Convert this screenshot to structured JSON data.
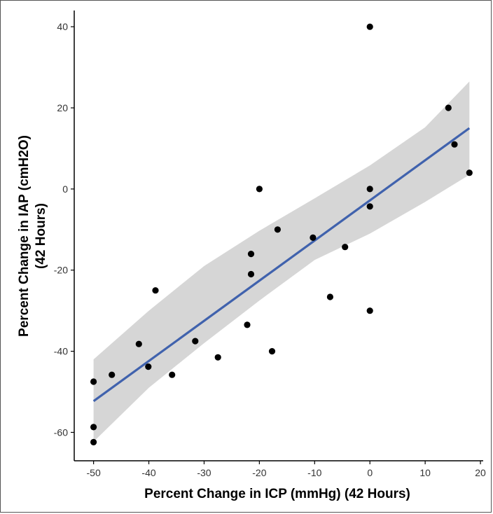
{
  "chart_data": {
    "type": "scatter",
    "title": "",
    "xlabel": "Percent Change in ICP (mmHg) (42 Hours)",
    "ylabel_lines": [
      "Percent Change in IAP (cmH2O)",
      "(42 Hours)"
    ],
    "xlim": [
      -53.5,
      20.5
    ],
    "ylim": [
      -67,
      44
    ],
    "xticks": [
      -50,
      -40,
      -30,
      -20,
      -10,
      0,
      10,
      20
    ],
    "yticks": [
      -60,
      -40,
      -20,
      0,
      20,
      40
    ],
    "xtick_labels": [
      "-50",
      "-40",
      "-30",
      "-20",
      "-10",
      "0",
      "10",
      "20"
    ],
    "ytick_labels": [
      "-60",
      "-40",
      "-20",
      "0",
      "20",
      "40"
    ],
    "grid": false,
    "points": [
      {
        "x": 0,
        "y": 40
      },
      {
        "x": 14.2,
        "y": 20
      },
      {
        "x": 15.3,
        "y": 11
      },
      {
        "x": 18,
        "y": 4
      },
      {
        "x": 0,
        "y": 0
      },
      {
        "x": -20,
        "y": 0
      },
      {
        "x": 0,
        "y": -4.3
      },
      {
        "x": -16.7,
        "y": -10
      },
      {
        "x": -10.3,
        "y": -12
      },
      {
        "x": -4.5,
        "y": -14.3
      },
      {
        "x": -21.5,
        "y": -16
      },
      {
        "x": -21.5,
        "y": -21
      },
      {
        "x": -38.8,
        "y": -25
      },
      {
        "x": -7.2,
        "y": -26.6
      },
      {
        "x": 0,
        "y": -30
      },
      {
        "x": -22.2,
        "y": -33.5
      },
      {
        "x": -31.6,
        "y": -37.5
      },
      {
        "x": -41.8,
        "y": -38.2
      },
      {
        "x": -17.7,
        "y": -40
      },
      {
        "x": -27.5,
        "y": -41.5
      },
      {
        "x": -40.1,
        "y": -43.8
      },
      {
        "x": -35.8,
        "y": -45.8
      },
      {
        "x": -46.7,
        "y": -45.8
      },
      {
        "x": -50,
        "y": -47.5
      },
      {
        "x": -50,
        "y": -58.7
      },
      {
        "x": -50,
        "y": -62.4
      }
    ],
    "fit_line": {
      "x": [
        -50,
        18
      ],
      "y": [
        -52.3,
        15
      ],
      "color": "#4062ad"
    },
    "confidence_band": {
      "x": [
        -50,
        -40,
        -30,
        -20,
        -10,
        0,
        10,
        18
      ],
      "upper": [
        -42,
        -30,
        -19,
        -10.3,
        -2.3,
        5.8,
        15.2,
        26.5
      ],
      "lower": [
        -62.3,
        -49,
        -38,
        -27.5,
        -17.5,
        -11,
        -3.2,
        3.5
      ],
      "color": "#d6d6d6"
    },
    "point_color": "#000000"
  }
}
